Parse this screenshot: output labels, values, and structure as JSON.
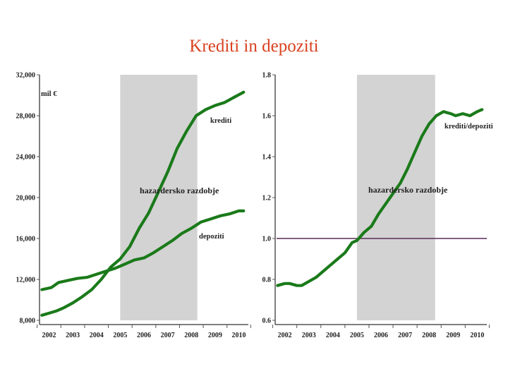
{
  "title": "Krediti in depoziti",
  "colors": {
    "title": "#d9411e",
    "series": "#1a7a1a",
    "shade": "#d3d3d3",
    "ref": "#5a2a5a",
    "axis": "#555555"
  },
  "chart_data": [
    {
      "type": "line",
      "x_ticks": [
        "2002",
        "2003",
        "2004",
        "2005",
        "2006",
        "2007",
        "2008",
        "2009",
        "2010"
      ],
      "y_ticks": [
        "32,000",
        "28,000",
        "24,000",
        "20,000",
        "16,000",
        "12,000",
        "8,000"
      ],
      "ylim": [
        8000,
        32000
      ],
      "xlim": [
        2001.6,
        2010.4
      ],
      "unit_label": "mil €",
      "shade": {
        "from": 2005.0,
        "to": 2008.25,
        "label": "hazardersko razdobje"
      },
      "series": [
        {
          "name": "krediti",
          "x": [
            2001.7,
            2002.0,
            2002.3,
            2002.6,
            2003.0,
            2003.4,
            2003.8,
            2004.2,
            2004.6,
            2005.0,
            2005.4,
            2005.8,
            2006.2,
            2006.6,
            2007.0,
            2007.4,
            2007.8,
            2008.2,
            2008.6,
            2009.0,
            2009.4,
            2009.8,
            2010.2
          ],
          "y": [
            8500,
            8700,
            8900,
            9200,
            9700,
            10300,
            11000,
            12000,
            13200,
            14000,
            15200,
            17000,
            18500,
            20500,
            22500,
            24800,
            26500,
            28000,
            28600,
            29000,
            29300,
            29800,
            30300
          ]
        },
        {
          "name": "depoziti",
          "x": [
            2001.7,
            2002.1,
            2002.4,
            2002.8,
            2003.2,
            2003.6,
            2004.0,
            2004.4,
            2004.8,
            2005.2,
            2005.6,
            2006.0,
            2006.4,
            2006.8,
            2007.2,
            2007.6,
            2008.0,
            2008.4,
            2008.8,
            2009.2,
            2009.6,
            2010.0,
            2010.2
          ],
          "y": [
            11000,
            11200,
            11700,
            11900,
            12100,
            12200,
            12500,
            12800,
            13100,
            13500,
            13900,
            14100,
            14600,
            15200,
            15800,
            16500,
            17000,
            17600,
            17900,
            18200,
            18400,
            18700,
            18700
          ]
        }
      ],
      "labels": {
        "krediti": "krediti",
        "depoziti": "depoziti"
      }
    },
    {
      "type": "line",
      "x_ticks": [
        "2002",
        "2003",
        "2004",
        "2005",
        "2006",
        "2007",
        "2008",
        "2009",
        "2010"
      ],
      "y_ticks": [
        "1.8",
        "1.6",
        "1.4",
        "1.2",
        "1.0",
        "0.8",
        "0.6"
      ],
      "ylim": [
        0.6,
        1.8
      ],
      "xlim": [
        2001.6,
        2010.4
      ],
      "reference_line": 1.0,
      "shade": {
        "from": 2005.0,
        "to": 2008.25,
        "label": "hazardersko razdobje"
      },
      "series": [
        {
          "name": "kreditideposits",
          "x": [
            2001.7,
            2002.0,
            2002.2,
            2002.5,
            2002.7,
            2003.0,
            2003.3,
            2003.6,
            2003.9,
            2004.2,
            2004.5,
            2004.8,
            2005.0,
            2005.3,
            2005.6,
            2005.9,
            2006.2,
            2006.5,
            2006.8,
            2007.1,
            2007.4,
            2007.7,
            2008.0,
            2008.3,
            2008.6,
            2008.9,
            2009.1,
            2009.4,
            2009.7,
            2010.0,
            2010.2
          ],
          "y": [
            0.77,
            0.78,
            0.78,
            0.77,
            0.77,
            0.79,
            0.81,
            0.84,
            0.87,
            0.9,
            0.93,
            0.98,
            0.99,
            1.03,
            1.06,
            1.12,
            1.17,
            1.22,
            1.27,
            1.34,
            1.42,
            1.5,
            1.56,
            1.6,
            1.62,
            1.61,
            1.6,
            1.61,
            1.6,
            1.62,
            1.63
          ]
        }
      ],
      "labels": {
        "ratio": "krediti/depoziti"
      }
    }
  ]
}
